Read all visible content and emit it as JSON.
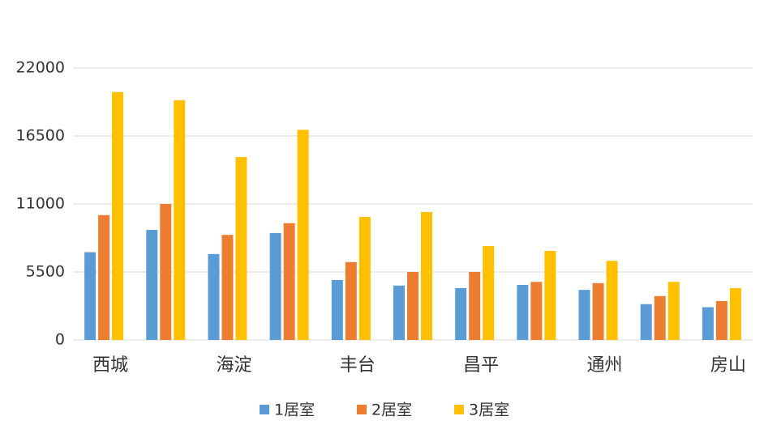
{
  "chart_data": {
    "type": "bar",
    "categories": [
      "西城",
      null,
      "海淀",
      null,
      "丰台",
      null,
      "昌平",
      null,
      "通州",
      null,
      "房山"
    ],
    "series": [
      {
        "name": "1居室",
        "color": "#5b9bd5",
        "values": [
          7100,
          8900,
          6950,
          8650,
          4850,
          4400,
          4200,
          4450,
          4050,
          2900,
          2650
        ]
      },
      {
        "name": "2居室",
        "color": "#ed7d31",
        "values": [
          10100,
          11000,
          8500,
          9450,
          6300,
          5500,
          5500,
          4700,
          4600,
          3550,
          3150
        ]
      },
      {
        "name": "3居室",
        "color": "#ffc000",
        "values": [
          20050,
          19400,
          14800,
          17000,
          9950,
          10350,
          7600,
          7200,
          6400,
          4700,
          4200
        ]
      }
    ],
    "ylim": [
      0,
      22000
    ],
    "yticks": [
      0,
      5500,
      11000,
      16500,
      22000
    ],
    "grid": true,
    "legend": "bottom"
  }
}
